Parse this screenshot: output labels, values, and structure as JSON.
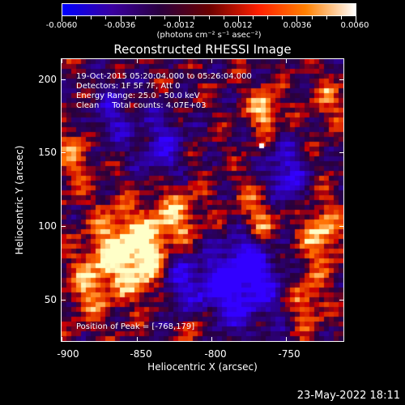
{
  "colorbar": {
    "tick_labels": [
      "-0.0060",
      "-0.0036",
      "-0.0012",
      "0.0012",
      "0.0036",
      "0.0060"
    ],
    "units": "(photons cm⁻² s⁻¹ asec⁻²)",
    "min": -0.006,
    "max": 0.006
  },
  "title": "Reconstructed RHESSI Image",
  "annotations": {
    "time_range": "19-Oct-2015 05:20:04.000 to 05:26:04.000",
    "detectors": "Detectors: 1F 5F 7F, Att 0",
    "energy": "Energy Range: 25.0 - 50.0 keV",
    "clean": "Clean     Total counts: 4.07E+03",
    "peak": "Position of Peak = [-768,179]"
  },
  "axes": {
    "x_title": "Heliocentric X (arcsec)",
    "y_title": "Heliocentric Y (arcsec)",
    "x_ticks": [
      "-900",
      "-850",
      "-800",
      "-750"
    ],
    "y_ticks": [
      "200",
      "150",
      "100",
      "50"
    ],
    "x_range": [
      -900,
      -710
    ],
    "y_range": [
      20,
      215
    ]
  },
  "footer": {
    "date": "23-May-2022 18:11"
  },
  "colors": {
    "background": "#000000",
    "colormap": [
      "#0000ff",
      "#3a00a0",
      "#2a0040",
      "#6a0000",
      "#ff2000",
      "#ff8000",
      "#ffffff"
    ]
  }
}
